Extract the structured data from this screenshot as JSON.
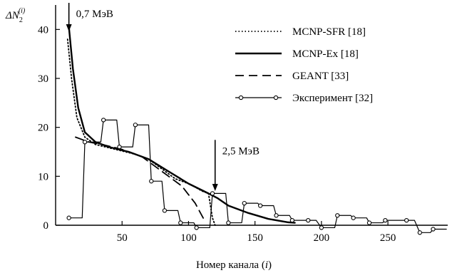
{
  "chart_data": {
    "type": "line",
    "ylabel": "ΔN₂⁽ⁱ⁾",
    "xlabel": "Номер канала (i)",
    "xlim": [
      0,
      295
    ],
    "ylim": [
      0,
      45
    ],
    "x_ticks": [
      50,
      100,
      150,
      200,
      250
    ],
    "y_ticks": [
      0,
      10,
      20,
      30,
      40
    ],
    "legend_position": "top-right",
    "series": [
      {
        "name": "MCNP-SFR [18]",
        "style": "dotted",
        "points": [
          [
            9,
            38
          ],
          [
            12,
            30
          ],
          [
            16,
            22
          ],
          [
            22,
            18
          ],
          [
            30,
            16.5
          ],
          [
            45,
            15.5
          ],
          [
            60,
            14.5
          ],
          [
            70,
            13.5
          ],
          [
            80,
            11.5
          ],
          [
            90,
            9.5
          ],
          [
            100,
            8.5
          ],
          [
            105,
            7.8
          ],
          [
            110,
            7
          ],
          [
            115,
            6.5
          ],
          [
            118,
            1.5
          ],
          [
            120,
            0
          ]
        ]
      },
      {
        "name": "MCNP-Ex [18]",
        "style": "solid",
        "points": [
          [
            10,
            40.5
          ],
          [
            13,
            32
          ],
          [
            17,
            24
          ],
          [
            22,
            19
          ],
          [
            30,
            17
          ],
          [
            40,
            16
          ],
          [
            55,
            15
          ],
          [
            70,
            13.5
          ],
          [
            85,
            11
          ],
          [
            100,
            8.5
          ],
          [
            115,
            6.5
          ],
          [
            122,
            5.5
          ],
          [
            130,
            4
          ],
          [
            145,
            2.5
          ],
          [
            160,
            1.3
          ],
          [
            175,
            0.6
          ],
          [
            180,
            0.5
          ]
        ]
      },
      {
        "name": "GEANT [33]",
        "style": "dashed",
        "points": [
          [
            15,
            18
          ],
          [
            25,
            17
          ],
          [
            35,
            16.5
          ],
          [
            50,
            15.5
          ],
          [
            65,
            14
          ],
          [
            80,
            11
          ],
          [
            95,
            8
          ],
          [
            105,
            4.5
          ],
          [
            112,
            1
          ]
        ]
      },
      {
        "name": "Эксперимент [32]",
        "style": "step-markers",
        "points": [
          [
            10,
            1.5
          ],
          [
            20,
            1.5
          ],
          [
            22,
            17
          ],
          [
            34,
            17
          ],
          [
            36,
            21.5
          ],
          [
            46,
            21.5
          ],
          [
            48,
            16
          ],
          [
            58,
            16
          ],
          [
            60,
            20.5
          ],
          [
            70,
            20.5
          ],
          [
            72,
            9
          ],
          [
            80,
            9
          ],
          [
            82,
            3
          ],
          [
            92,
            3
          ],
          [
            94,
            0.5
          ],
          [
            104,
            0.5
          ],
          [
            106,
            -0.5
          ],
          [
            116,
            -0.5
          ],
          [
            118,
            6.5
          ],
          [
            128,
            6.5
          ],
          [
            130,
            0.5
          ],
          [
            140,
            0.5
          ],
          [
            142,
            4.5
          ],
          [
            152,
            4.5
          ],
          [
            154,
            4
          ],
          [
            164,
            4
          ],
          [
            166,
            2
          ],
          [
            176,
            2
          ],
          [
            178,
            1
          ],
          [
            188,
            1
          ],
          [
            190,
            1
          ],
          [
            196,
            1
          ],
          [
            200,
            -0.5
          ],
          [
            210,
            -0.5
          ],
          [
            212,
            2
          ],
          [
            222,
            2
          ],
          [
            224,
            1.5
          ],
          [
            234,
            1.5
          ],
          [
            236,
            0.5
          ],
          [
            246,
            0.5
          ],
          [
            248,
            1
          ],
          [
            262,
            1
          ],
          [
            264,
            1
          ],
          [
            270,
            1
          ],
          [
            274,
            -1.5
          ],
          [
            282,
            -1.5
          ],
          [
            284,
            -0.8
          ],
          [
            294,
            -0.8
          ]
        ]
      }
    ],
    "annotations": [
      {
        "text": "0,7 МэВ",
        "x": 10,
        "y": 45
      },
      {
        "text": "2,5 МэВ",
        "x": 120,
        "y": 17
      }
    ]
  }
}
